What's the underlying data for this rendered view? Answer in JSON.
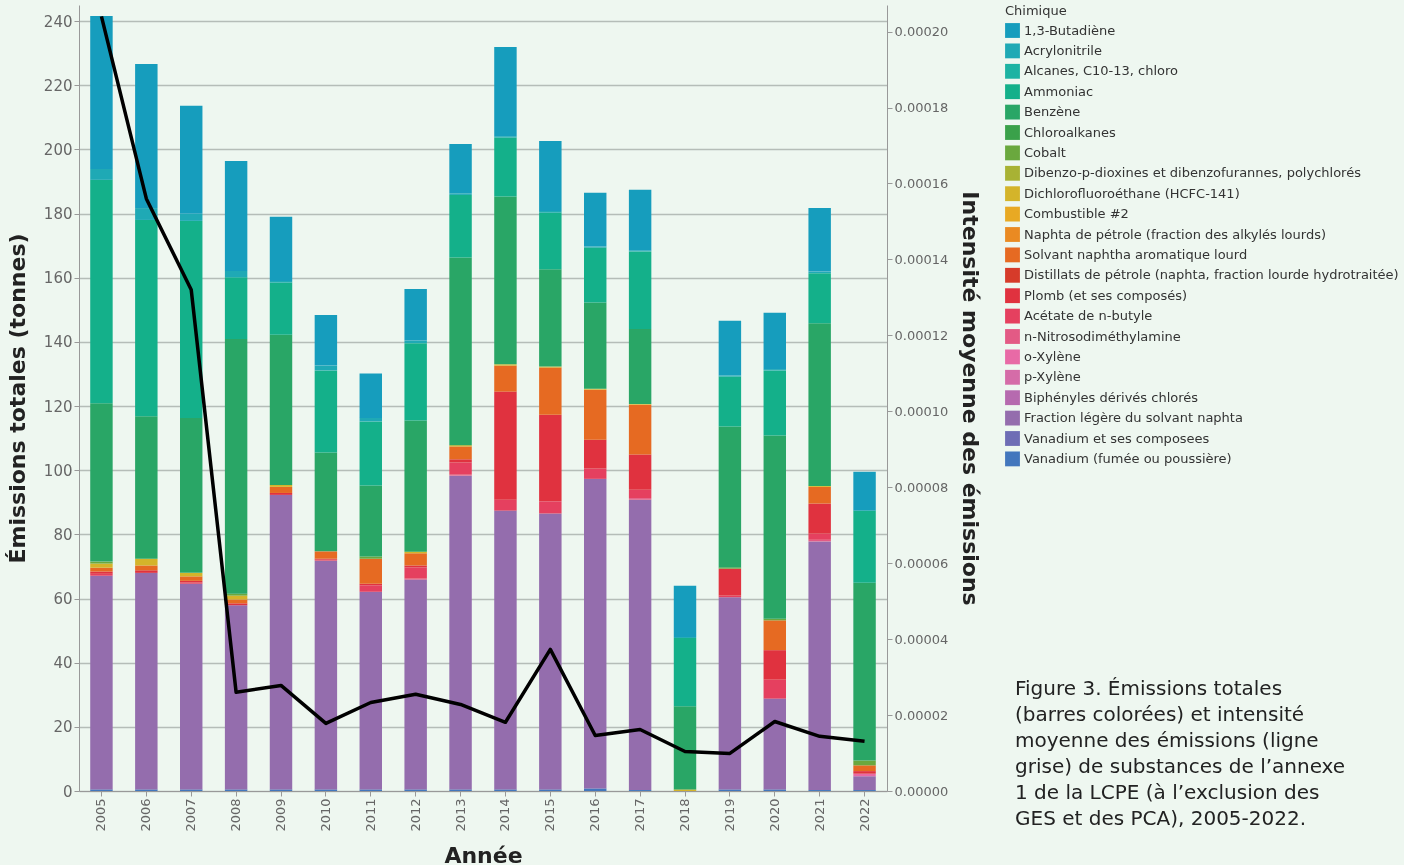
{
  "chart_data": {
    "type": "bar",
    "stacked": true,
    "xlabel": "Année",
    "ylabel": "Émissions totales (tonnes)",
    "y2label": "Intensité moyenne des émissions",
    "legend_title": "Chimique",
    "legend": "right",
    "grid": "y",
    "marker": "none",
    "line_style": "solid",
    "categories": [
      "2005",
      "2006",
      "2007",
      "2008",
      "2009",
      "2010",
      "2011",
      "2012",
      "2013",
      "2014",
      "2015",
      "2016",
      "2017",
      "2018",
      "2019",
      "2020",
      "2021",
      "2022"
    ],
    "ylim": [
      0,
      245
    ],
    "yticks": [
      0,
      20,
      40,
      60,
      80,
      100,
      120,
      140,
      160,
      180,
      200,
      220,
      240
    ],
    "y2lim": [
      0,
      0.000207
    ],
    "y2ticks": [
      {
        "value": 0,
        "label": "0.00000"
      },
      {
        "value": 2e-05,
        "label": "0.00002"
      },
      {
        "value": 4e-05,
        "label": "0.00004"
      },
      {
        "value": 6e-05,
        "label": "0.00006"
      },
      {
        "value": 8e-05,
        "label": "0.00008"
      },
      {
        "value": 0.0001,
        "label": "0.00010"
      },
      {
        "value": 0.00012,
        "label": "0.00012"
      },
      {
        "value": 0.00014,
        "label": "0.00014"
      },
      {
        "value": 0.00016,
        "label": "0.00016"
      },
      {
        "value": 0.00018,
        "label": "0.00018"
      },
      {
        "value": 0.0002,
        "label": "0.00020"
      }
    ],
    "series": [
      {
        "name": "Vanadium (fumée ou poussière)",
        "color": "#4377bd",
        "values": [
          0.5,
          0.5,
          0.5,
          0.5,
          0.5,
          0.5,
          0.5,
          0.5,
          0.5,
          0.5,
          0.5,
          0.8,
          0.3,
          0,
          0.5,
          0.5,
          0.3,
          0.3
        ]
      },
      {
        "name": "Vanadium et ses composees",
        "color": "#6e6db5",
        "values": [
          0,
          0,
          0,
          0,
          0,
          0,
          0,
          0,
          0,
          0,
          0,
          0,
          0,
          0,
          0,
          0,
          0,
          0
        ]
      },
      {
        "name": "Fraction légère du solvant naphta",
        "color": "#946dad",
        "values": [
          66.6,
          67.5,
          64.1,
          57.4,
          91.8,
          71.3,
          61.6,
          65.4,
          97.8,
          86.9,
          86.0,
          96.5,
          90.5,
          0,
          59.9,
          28.3,
          77.5,
          4.3
        ]
      },
      {
        "name": "Biphényles dérivés chlorés",
        "color": "#b66aaf",
        "values": [
          0,
          0,
          0,
          0,
          0,
          0,
          0,
          0,
          0,
          0,
          0,
          0,
          0,
          0,
          0,
          0,
          0,
          0
        ]
      },
      {
        "name": "p-Xylène",
        "color": "#d56ca8",
        "values": [
          0,
          0,
          0,
          0,
          0,
          0,
          0,
          0,
          0,
          0,
          0,
          0,
          0,
          0,
          0,
          0,
          0,
          0
        ]
      },
      {
        "name": "o-Xylène",
        "color": "#e86aa6",
        "values": [
          0,
          0,
          0,
          0,
          0,
          0,
          0,
          0,
          0,
          0,
          0,
          0,
          0,
          0,
          0,
          0,
          0,
          0.8
        ]
      },
      {
        "name": "n-Nitrosodiméthylamine",
        "color": "#e35a85",
        "values": [
          0,
          0,
          0,
          0,
          0,
          0,
          0,
          0.3,
          0.3,
          0,
          0,
          0,
          0.5,
          0,
          0,
          0,
          0.5,
          0
        ]
      },
      {
        "name": "Acétate de n-butyle",
        "color": "#e5405f",
        "values": [
          0.6,
          0,
          0.4,
          0,
          0,
          0.3,
          2.0,
          3.5,
          3.8,
          3.4,
          3.8,
          3.2,
          2.6,
          0,
          0.5,
          5.9,
          1.9,
          0
        ]
      },
      {
        "name": "Plomb (et ses composés)",
        "color": "#e0323f",
        "values": [
          0.7,
          0.8,
          0.5,
          0.6,
          0.6,
          0.3,
          0.5,
          0.6,
          1.0,
          33.7,
          27.0,
          9.0,
          11.0,
          0,
          8.4,
          9.2,
          9.4,
          0.8
        ]
      },
      {
        "name": "Distillats de pétrole (naphta, fraction lourde hydrotraitée)",
        "color": "#d63b2a",
        "values": [
          0,
          0,
          0,
          0,
          0,
          0,
          0,
          0,
          0,
          0,
          0,
          0,
          0,
          0,
          0,
          0,
          0,
          0
        ]
      },
      {
        "name": "Solvant naphtha aromatique lourd",
        "color": "#e66a22",
        "values": [
          1.2,
          1.5,
          1.4,
          1.2,
          1.9,
          2.3,
          7.8,
          3.8,
          4.0,
          8.1,
          14.7,
          15.6,
          15.5,
          0,
          0,
          9.3,
          5.2,
          1.8
        ]
      },
      {
        "name": "Naphta de pétrole (fraction des alkylés lourds)",
        "color": "#ea8a22",
        "values": [
          0,
          0,
          0,
          0,
          0,
          0,
          0,
          0,
          0,
          0,
          0,
          0,
          0,
          0,
          0,
          0,
          0,
          0
        ]
      },
      {
        "name": "Combustible #2",
        "color": "#e8a923",
        "values": [
          0,
          0,
          0,
          0,
          0,
          0,
          0,
          0,
          0,
          0,
          0,
          0,
          0,
          0,
          0,
          0,
          0,
          0
        ]
      },
      {
        "name": "Dichlorofluoroéthane (HCFC-141)",
        "color": "#d4b42a",
        "values": [
          1.3,
          2.1,
          1.1,
          1.2,
          0.6,
          0,
          0,
          0.5,
          0.4,
          0.4,
          0.3,
          0.3,
          0.2,
          0.5,
          0,
          0,
          0.3,
          0
        ]
      },
      {
        "name": "Dibenzo-p-dioxines et dibenzofurannes, polychlorés",
        "color": "#a8b234",
        "values": [
          0,
          0,
          0,
          0,
          0,
          0,
          0,
          0,
          0,
          0,
          0,
          0,
          0,
          0,
          0,
          0,
          0,
          0
        ]
      },
      {
        "name": "Cobalt",
        "color": "#6aa83e",
        "values": [
          0.6,
          0,
          0,
          0.6,
          0,
          0,
          0.7,
          0,
          0,
          0,
          0,
          0,
          0,
          0,
          0.4,
          0.5,
          0,
          1.5
        ]
      },
      {
        "name": "Chloroalkanes",
        "color": "#3aa14a",
        "values": [
          0,
          0,
          0,
          0,
          0,
          0,
          0,
          0,
          0,
          0,
          0,
          0,
          0,
          0,
          0,
          0,
          0,
          0
        ]
      },
      {
        "name": "Benzène",
        "color": "#29a666",
        "values": [
          49.4,
          44.4,
          48.3,
          79.4,
          46.8,
          30.8,
          22.1,
          40.9,
          58.5,
          52.3,
          30.3,
          26.9,
          23.4,
          25.9,
          43.9,
          57.1,
          50.7,
          55.4
        ]
      },
      {
        "name": "Ammoniac",
        "color": "#14b08a",
        "values": [
          69.6,
          61.2,
          61.4,
          19.2,
          16.3,
          25.6,
          20.0,
          24.1,
          19.5,
          18.4,
          17.7,
          17.1,
          24.2,
          21.3,
          15.6,
          20.3,
          15.6,
          22.5
        ]
      },
      {
        "name": "Alcanes, C10-13, chloro",
        "color": "#1db3a3",
        "values": [
          0,
          0,
          0,
          0,
          0,
          0,
          0,
          0,
          0,
          0,
          0,
          0,
          0,
          0,
          0,
          0,
          0,
          0
        ]
      },
      {
        "name": "Acrylonitrile",
        "color": "#1fa9b5",
        "values": [
          3.4,
          3.7,
          2.2,
          2.0,
          0.5,
          1.5,
          1.1,
          0.8,
          0.5,
          0.4,
          0.5,
          0.3,
          0.3,
          0.3,
          0.3,
          0.4,
          0.5,
          0
        ]
      },
      {
        "name": "1,3-Butadiène",
        "color": "#169dbd",
        "values": [
          47.7,
          44.9,
          33.7,
          34.3,
          20.0,
          15.8,
          13.8,
          16.1,
          15.4,
          27.8,
          21.8,
          16.8,
          18.9,
          16.0,
          17.1,
          17.6,
          19.8,
          12.1
        ]
      },
      {
        "type": "line",
        "axis": "y2",
        "color": "#000000",
        "values": [
          0.000204,
          0.000156,
          0.000132,
          2.6e-05,
          2.78e-05,
          1.78e-05,
          2.33e-05,
          2.55e-05,
          2.28e-05,
          1.81e-05,
          3.73e-05,
          1.46e-05,
          1.62e-05,
          1.04e-05,
          9.9e-06,
          1.83e-05,
          1.44e-05,
          1.31e-05
        ]
      }
    ],
    "annotations": [
      "Figure 3. Émissions totales (barres colorées) et intensité moyenne des émissions (ligne grise) de substances de l’annexe 1 de la LCPE (à l’exclusion des GES et des PCA), 2005-2022."
    ]
  }
}
